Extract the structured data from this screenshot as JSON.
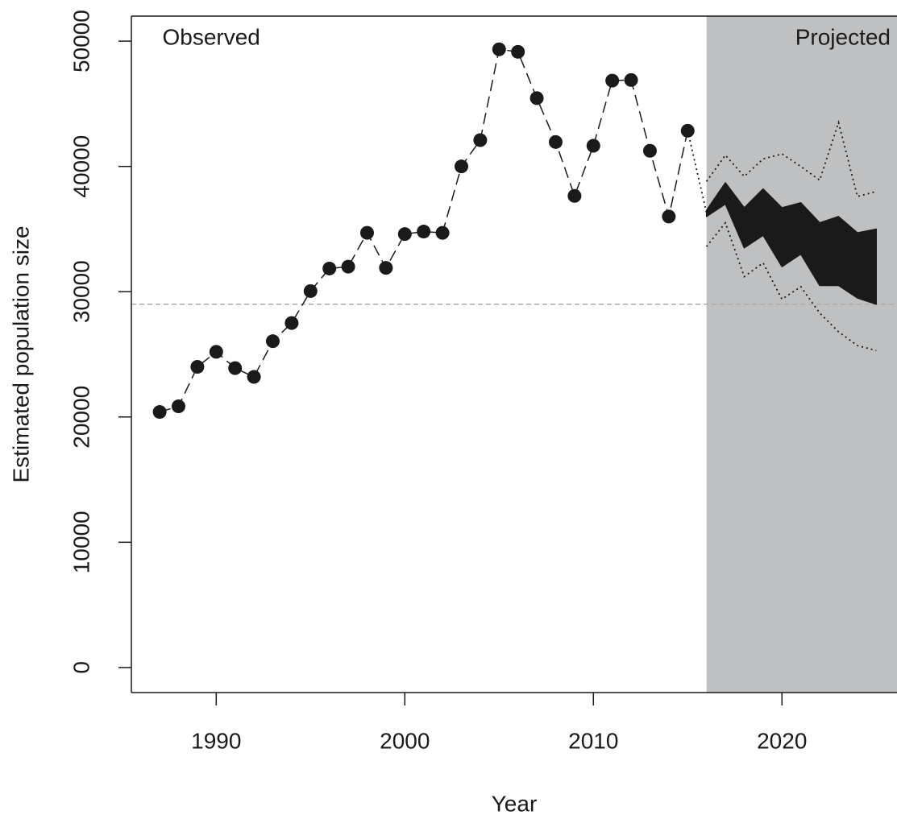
{
  "chart_data": {
    "type": "line",
    "x_label": "Year",
    "y_label": "Estimated population size",
    "xlim": [
      1985.5,
      2026.1
    ],
    "ylim": [
      -2000,
      52000
    ],
    "xticks": [
      1990,
      2000,
      2010,
      2020
    ],
    "yticks": [
      0,
      10000,
      20000,
      30000,
      40000,
      50000
    ],
    "projection_start": 2016,
    "shade_color": "#bfc0c2",
    "hline": 29000,
    "annotations": [
      {
        "text": "Observed",
        "x": 1988,
        "side": "left"
      },
      {
        "text": "Projected",
        "x": 2026.1,
        "side": "right"
      }
    ],
    "series": [
      {
        "style": "points",
        "color": "#1a1a1a",
        "x": [
          1987,
          1988,
          1989,
          1990,
          1991,
          1992,
          1993,
          1994,
          1995,
          1996,
          1997,
          1998,
          1999,
          2000,
          2001,
          2002,
          2003,
          2004,
          2005,
          2006,
          2007,
          2008,
          2009,
          2010,
          2011,
          2012,
          2013,
          2014,
          2015
        ],
        "values": [
          20400,
          20850,
          24000,
          25200,
          23900,
          23200,
          26050,
          27500,
          30050,
          31850,
          32000,
          34700,
          31900,
          34600,
          34800,
          34700,
          40000,
          42100,
          49350,
          49150,
          45450,
          41950,
          37650,
          41650,
          46850,
          46900,
          41250,
          36000,
          42850
        ]
      },
      {
        "style": "dotted",
        "color": "#1a1a1a",
        "x": [
          2015,
          2016
        ],
        "values": [
          42850,
          36300
        ]
      },
      {
        "style": "band",
        "color": "#1a1a1a",
        "x": [
          2016,
          2017,
          2018,
          2019,
          2020,
          2021,
          2022,
          2023,
          2024,
          2025
        ],
        "high": [
          36500,
          38700,
          36700,
          38200,
          36700,
          37100,
          35500,
          36000,
          34700,
          35000
        ],
        "low": [
          36000,
          37000,
          33500,
          34500,
          32000,
          33000,
          30500,
          30500,
          29500,
          29000
        ]
      },
      {
        "style": "dotted",
        "color": "#1a1a1a",
        "x": [
          2016,
          2017,
          2018,
          2019,
          2020,
          2021,
          2022,
          2023,
          2024,
          2025
        ],
        "values": [
          38800,
          40900,
          39200,
          40600,
          41000,
          40000,
          38900,
          43500,
          37600,
          38000
        ]
      },
      {
        "style": "dotted",
        "color": "#1a1a1a",
        "x": [
          2016,
          2017,
          2018,
          2019,
          2020,
          2021,
          2022,
          2023,
          2024,
          2025
        ],
        "values": [
          33600,
          35500,
          31200,
          32300,
          29400,
          30400,
          28300,
          26800,
          25700,
          25300
        ]
      }
    ]
  }
}
